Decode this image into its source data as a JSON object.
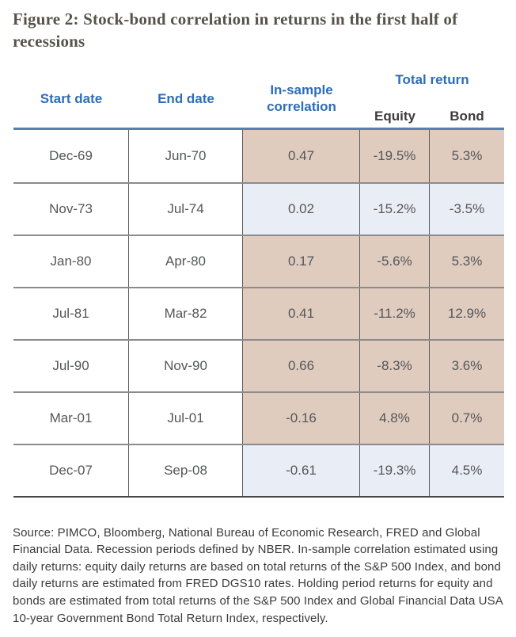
{
  "figure": {
    "title": "Figure 2: Stock-bond correlation in returns in the first half of recessions",
    "source_note": "Source: PIMCO, Bloomberg, National Bureau of Economic Research, FRED and Global Financial Data. Recession periods defined by NBER. In-sample correlation estimated using daily returns: equity daily returns are based on total returns of the S&P 500 Index, and bond daily returns are estimated from FRED DGS10 rates. Holding period returns for equity and bonds are estimated from total returns of the S&P 500 Index and Global Financial Data USA 10-year Government Bond Total Return Index, respectively."
  },
  "table": {
    "headers": {
      "start_date": "Start date",
      "end_date": "End date",
      "correlation": "In-sample correlation",
      "total_return": "Total return",
      "equity": "Equity",
      "bond": "Bond"
    },
    "rows": [
      {
        "start": "Dec-69",
        "end": "Jun-70",
        "corr": "0.47",
        "equity": "-19.5%",
        "bond": "5.3%",
        "shade": "tan"
      },
      {
        "start": "Nov-73",
        "end": "Jul-74",
        "corr": "0.02",
        "equity": "-15.2%",
        "bond": "-3.5%",
        "shade": "blue"
      },
      {
        "start": "Jan-80",
        "end": "Apr-80",
        "corr": "0.17",
        "equity": "-5.6%",
        "bond": "5.3%",
        "shade": "tan"
      },
      {
        "start": "Jul-81",
        "end": "Mar-82",
        "corr": "0.41",
        "equity": "-11.2%",
        "bond": "12.9%",
        "shade": "tan"
      },
      {
        "start": "Jul-90",
        "end": "Nov-90",
        "corr": "0.66",
        "equity": "-8.3%",
        "bond": "3.6%",
        "shade": "tan"
      },
      {
        "start": "Mar-01",
        "end": "Jul-01",
        "corr": "-0.16",
        "equity": "4.8%",
        "bond": "0.7%",
        "shade": "tan"
      },
      {
        "start": "Dec-07",
        "end": "Sep-08",
        "corr": "-0.61",
        "equity": "-19.3%",
        "bond": "4.5%",
        "shade": "blue"
      }
    ]
  },
  "colors": {
    "header_blue": "#2e6db7",
    "tan_highlight": "#dfccbe",
    "blue_highlight": "#e9eef6",
    "top_border_blue": "#5580b2",
    "title_color": "#57534a"
  }
}
